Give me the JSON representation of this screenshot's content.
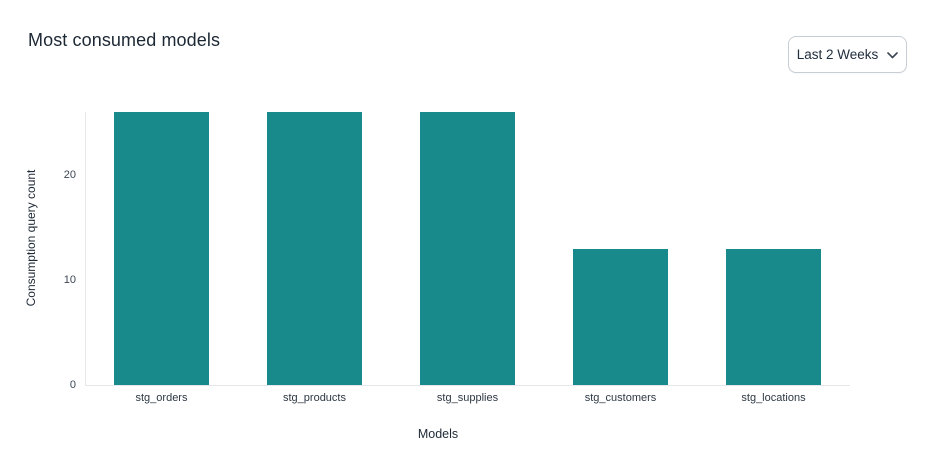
{
  "header": {
    "title": "Most consumed models"
  },
  "filter": {
    "label": "Last 2 Weeks"
  },
  "chart_data": {
    "type": "bar",
    "title": "Most consumed models",
    "categories": [
      "stg_orders",
      "stg_products",
      "stg_supplies",
      "stg_customers",
      "stg_locations"
    ],
    "values": [
      26,
      26,
      26,
      13,
      13
    ],
    "xlabel": "Models",
    "ylabel": "Consumption query count",
    "ylim": [
      0,
      26
    ],
    "yticks": [
      0,
      10,
      20
    ],
    "bar_color": "#188A8C",
    "grid": false,
    "legend": false
  },
  "colors": {
    "bar": "#188A8C",
    "axis_line": "#e5e8eb",
    "title_text": "#1c2834",
    "tick_text": "#3b4653",
    "background": "#ffffff"
  }
}
